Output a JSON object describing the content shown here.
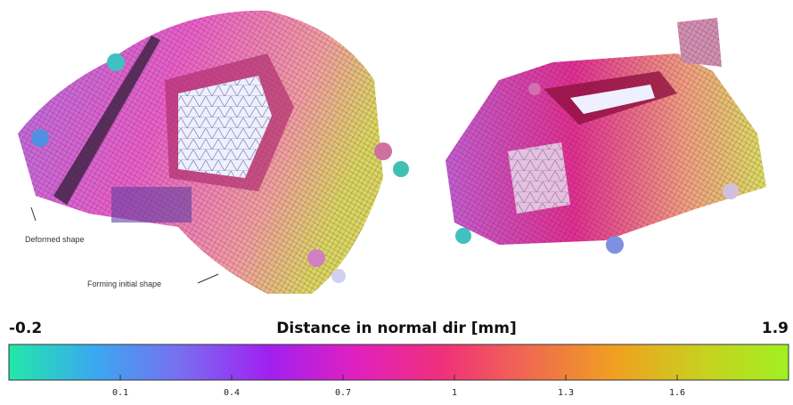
{
  "annotations": [
    "Deformed shape",
    "Forming initial shape"
  ],
  "colorbar": {
    "title": "Distance in normal dir [mm]",
    "range": [
      -0.2,
      1.9
    ],
    "ticks": [
      0.1,
      0.4,
      0.7,
      1.0,
      1.3,
      1.6
    ],
    "colors": [
      "#22e8a8",
      "#3aa8f0",
      "#7a6cf0",
      "#a020f0",
      "#e020c0",
      "#f0307a",
      "#f06a50",
      "#f0a020",
      "#c8d020",
      "#a0f020"
    ]
  }
}
